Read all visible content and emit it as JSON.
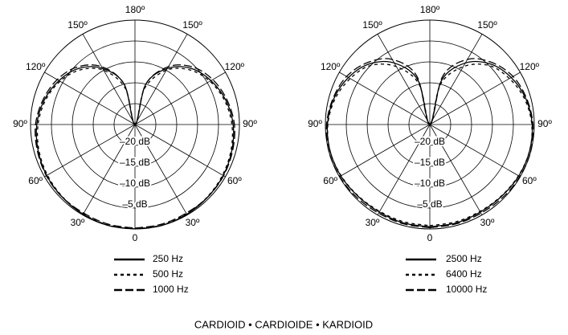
{
  "chart_data": [
    {
      "type": "polar",
      "theta": [
        0,
        15,
        30,
        45,
        60,
        75,
        90,
        105,
        120,
        135,
        150,
        165,
        180,
        195,
        210,
        225,
        240,
        255,
        270,
        285,
        300,
        315,
        330,
        345,
        360
      ],
      "rlim": [
        -25,
        0
      ],
      "rticks": [
        {
          "value": -20,
          "label": "–20 dB"
        },
        {
          "value": -15,
          "label": "–15 dB"
        },
        {
          "value": -10,
          "label": "–10 dB"
        },
        {
          "value": -5,
          "label": "–5 dB"
        }
      ],
      "thetaticks": [
        0,
        {
          "value": 30,
          "label": "30º"
        },
        {
          "value": 60,
          "label": "60º"
        },
        {
          "value": 90,
          "label": "90º"
        },
        {
          "value": 120,
          "label": "120º"
        },
        {
          "value": 150,
          "label": "150º"
        },
        {
          "value": 180,
          "label": "180º"
        },
        {
          "value": 210,
          "label": "150º"
        },
        {
          "value": 240,
          "label": "120º"
        },
        {
          "value": 270,
          "label": "90º"
        },
        {
          "value": 300,
          "label": "60º"
        },
        {
          "value": 330,
          "label": "30º"
        }
      ],
      "series": [
        {
          "name": "250 Hz",
          "color": "#000000",
          "dash": "solid",
          "values": [
            0,
            0,
            -0.2,
            -0.4,
            -0.6,
            -1,
            -1.5,
            -2.5,
            -4,
            -6,
            -9.5,
            -15,
            -25,
            -15,
            -9.5,
            -6,
            -4,
            -2.5,
            -1.5,
            -1,
            -0.6,
            -0.4,
            -0.2,
            0,
            0
          ]
        },
        {
          "name": "500 Hz",
          "color": "#000000",
          "dash": "dashed",
          "values": [
            0,
            -0.1,
            -0.3,
            -0.5,
            -0.8,
            -1.2,
            -1.8,
            -2.8,
            -4.3,
            -6.5,
            -10,
            -16,
            -25,
            -16,
            -10,
            -6.5,
            -4.3,
            -2.8,
            -1.8,
            -1.2,
            -0.8,
            -0.5,
            -0.3,
            -0.1,
            0
          ]
        },
        {
          "name": "1000 Hz",
          "color": "#000000",
          "dash": "longdash",
          "values": [
            -0.2,
            -0.3,
            -0.5,
            -0.4,
            -0.5,
            -0.8,
            -1.2,
            -2.2,
            -3.5,
            -5.5,
            -9,
            -15,
            -25,
            -15,
            -9,
            -5.5,
            -3.5,
            -2.2,
            -1.2,
            -0.8,
            -0.5,
            -0.4,
            -0.5,
            -0.3,
            -0.2
          ]
        }
      ]
    },
    {
      "type": "polar",
      "theta": [
        0,
        15,
        30,
        45,
        60,
        75,
        90,
        105,
        120,
        135,
        150,
        165,
        180,
        195,
        210,
        225,
        240,
        255,
        270,
        285,
        300,
        315,
        330,
        345,
        360
      ],
      "rlim": [
        -25,
        0
      ],
      "rticks": [
        {
          "value": -20,
          "label": "–20 dB"
        },
        {
          "value": -15,
          "label": "–15 dB"
        },
        {
          "value": -10,
          "label": "–10 dB"
        },
        {
          "value": -5,
          "label": "–5 dB"
        }
      ],
      "thetaticks": [
        0,
        {
          "value": 30,
          "label": "30º"
        },
        {
          "value": 60,
          "label": "60º"
        },
        {
          "value": 90,
          "label": "90º"
        },
        {
          "value": 120,
          "label": "120º"
        },
        {
          "value": 150,
          "label": "150º"
        },
        {
          "value": 180,
          "label": "180º"
        },
        {
          "value": 210,
          "label": "150º"
        },
        {
          "value": 240,
          "label": "120º"
        },
        {
          "value": 270,
          "label": "90º"
        },
        {
          "value": 300,
          "label": "60º"
        },
        {
          "value": 330,
          "label": "30º"
        }
      ],
      "series": [
        {
          "name": "2500 Hz",
          "color": "#000000",
          "dash": "solid",
          "values": [
            -0.5,
            -0.6,
            -0.8,
            -0.7,
            -0.4,
            -0.3,
            -0.5,
            -1.2,
            -2.5,
            -4.5,
            -8,
            -14,
            -25,
            -14,
            -8,
            -4.5,
            -2.5,
            -1.2,
            -0.5,
            -0.3,
            -0.4,
            -0.7,
            -0.8,
            -0.6,
            -0.5
          ]
        },
        {
          "name": "6400 Hz",
          "color": "#000000",
          "dash": "dashed",
          "values": [
            -0.8,
            -0.9,
            -1,
            -0.8,
            -0.5,
            -0.3,
            -0.6,
            -1.5,
            -3,
            -5,
            -9,
            -15,
            -25,
            -15,
            -9,
            -5,
            -3,
            -1.5,
            -0.6,
            -0.3,
            -0.5,
            -0.8,
            -1,
            -0.9,
            -0.8
          ]
        },
        {
          "name": "10000 Hz",
          "color": "#000000",
          "dash": "longdash",
          "values": [
            -0.3,
            -0.4,
            -0.5,
            -0.3,
            -0.1,
            0,
            -0.3,
            -1,
            -2,
            -4,
            -7,
            -13,
            -25,
            -13,
            -7,
            -4,
            -2,
            -1,
            -0.3,
            0,
            -0.1,
            -0.3,
            -0.5,
            -0.4,
            -0.3
          ]
        }
      ]
    }
  ],
  "caption": "CARDIOID • CARDIOIDE • KARDIOID"
}
